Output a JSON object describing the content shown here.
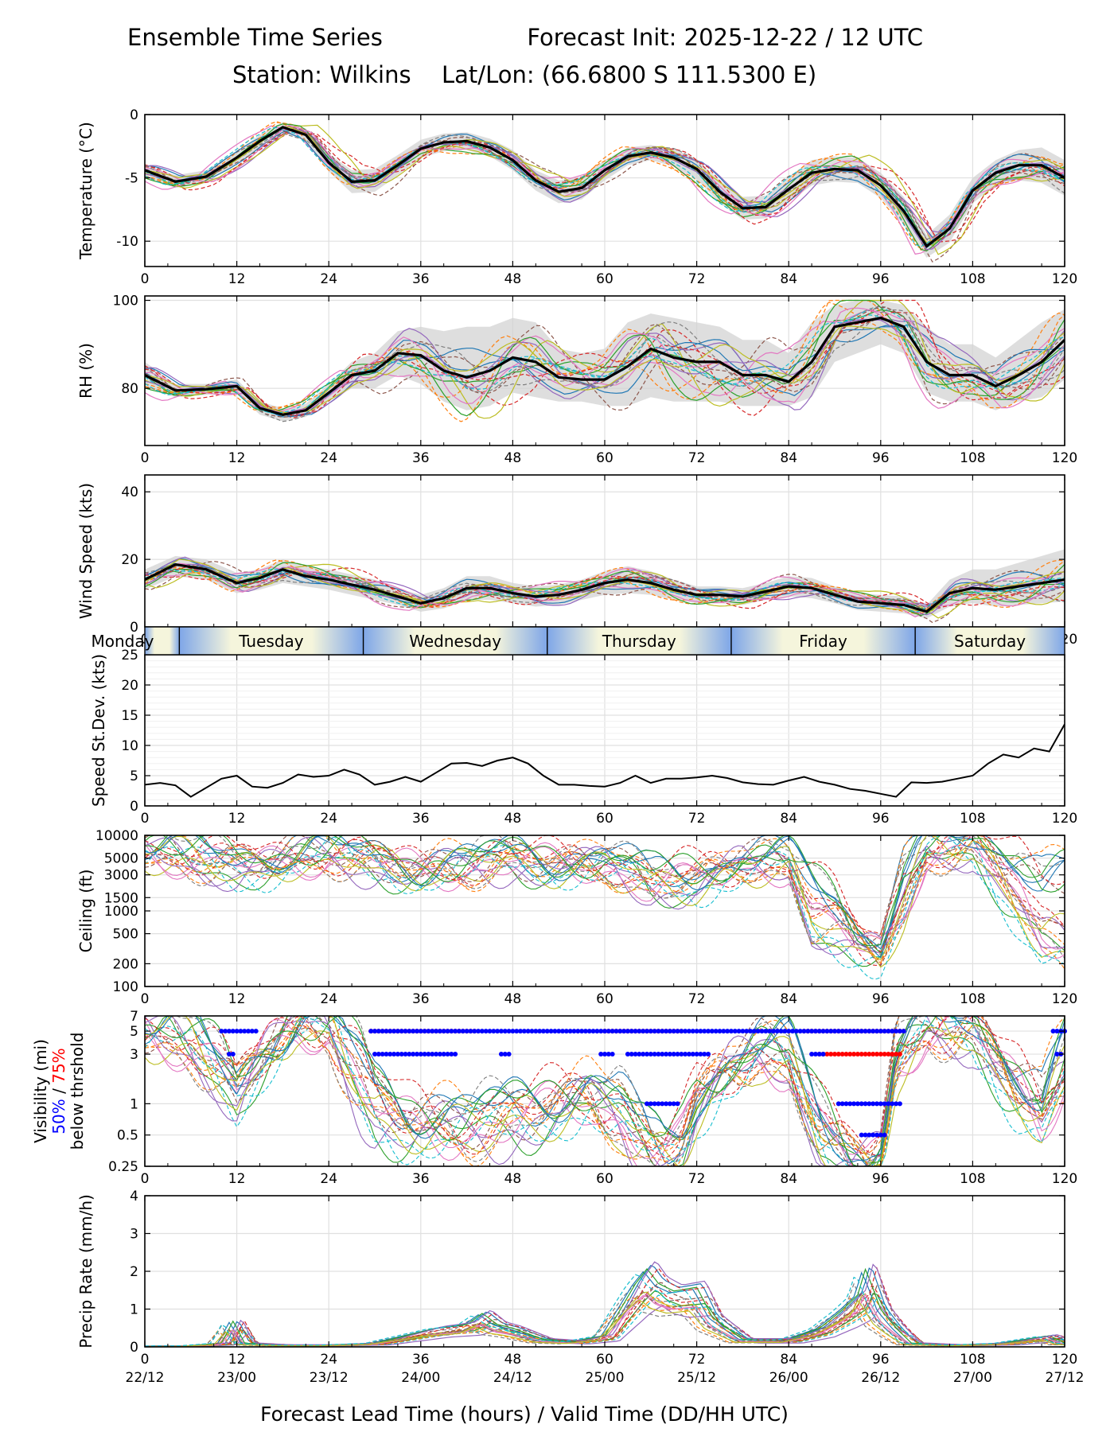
{
  "header": {
    "title_left": "Ensemble Time Series",
    "title_right": "Forecast Init: 2025-12-22 / 12 UTC",
    "station": "Station: Wilkins",
    "latlon": "Lat/Lon: (66.6800 S 111.5300 E)"
  },
  "footer": {
    "xlabel": "Forecast Lead Time (hours) / Valid Time (DD/HH UTC)"
  },
  "colors": {
    "ensemble": [
      "#1f77b4",
      "#ff7f0e",
      "#2ca02c",
      "#d62728",
      "#9467bd",
      "#8c564b",
      "#e377c2",
      "#7f7f7f",
      "#bcbd22",
      "#17becf"
    ],
    "mean": "#000000",
    "spread": "#d3d3d3",
    "vis50": "#0000ff",
    "vis75": "#ff0000",
    "day_band_a": "#7ea6e8",
    "day_band_b": "#f5f5dc"
  },
  "day_band": {
    "days": [
      {
        "label": "Monday",
        "start": 0,
        "end": 4.5
      },
      {
        "label": "Tuesday",
        "start": 4.5,
        "end": 28.5
      },
      {
        "label": "Wednesday",
        "start": 28.5,
        "end": 52.5
      },
      {
        "label": "Thursday",
        "start": 52.5,
        "end": 76.5
      },
      {
        "label": "Friday",
        "start": 76.5,
        "end": 100.5
      },
      {
        "label": "Saturday",
        "start": 100.5,
        "end": 120
      }
    ]
  },
  "chart_data": [
    {
      "id": "temperature",
      "type": "line",
      "ylabel": "Temperature (°C)",
      "xlim": [
        0,
        120
      ],
      "ylim": [
        -12,
        0
      ],
      "yticks": [
        0,
        -5,
        -10
      ],
      "xticks": [
        0,
        12,
        24,
        36,
        48,
        60,
        72,
        84,
        96,
        108,
        120
      ],
      "x": [
        0,
        4,
        8,
        12,
        15,
        18,
        21,
        24,
        27,
        30,
        33,
        36,
        39,
        42,
        45,
        48,
        51,
        54,
        57,
        60,
        63,
        66,
        69,
        72,
        75,
        78,
        81,
        84,
        87,
        90,
        93,
        96,
        99,
        102,
        105,
        108,
        111,
        114,
        117,
        120
      ],
      "mean": [
        -4.4,
        -5.3,
        -4.9,
        -3.4,
        -2.1,
        -1.0,
        -1.6,
        -3.8,
        -5.3,
        -5.2,
        -4.0,
        -2.7,
        -2.2,
        -2.1,
        -2.6,
        -3.6,
        -5.2,
        -6.1,
        -5.8,
        -4.4,
        -3.3,
        -3.0,
        -3.4,
        -4.3,
        -6.1,
        -7.4,
        -7.3,
        -5.9,
        -4.6,
        -4.3,
        -4.4,
        -5.6,
        -7.6,
        -10.4,
        -9.0,
        -6.0,
        -4.6,
        -4.0,
        -4.0,
        -5.0
      ],
      "spread_lo": [
        -4.9,
        -5.8,
        -5.4,
        -3.9,
        -2.6,
        -1.4,
        -2.1,
        -4.5,
        -6.2,
        -6.1,
        -4.8,
        -3.4,
        -2.9,
        -2.8,
        -3.3,
        -4.4,
        -6.0,
        -7.0,
        -6.7,
        -5.2,
        -4.0,
        -3.6,
        -4.1,
        -5.1,
        -7.0,
        -8.3,
        -8.2,
        -6.9,
        -5.6,
        -5.3,
        -5.4,
        -6.6,
        -8.7,
        -11.3,
        -10.1,
        -7.0,
        -5.6,
        -5.2,
        -5.4,
        -6.4
      ],
      "spread_hi": [
        -3.9,
        -4.8,
        -4.4,
        -2.9,
        -1.6,
        -0.6,
        -1.1,
        -3.1,
        -4.4,
        -4.3,
        -3.2,
        -2.0,
        -1.5,
        -1.4,
        -1.9,
        -2.8,
        -4.4,
        -5.2,
        -4.9,
        -3.6,
        -2.6,
        -2.4,
        -2.7,
        -3.5,
        -5.2,
        -6.5,
        -6.4,
        -4.9,
        -3.6,
        -3.3,
        -3.4,
        -4.6,
        -6.5,
        -9.5,
        -7.9,
        -5.0,
        -3.6,
        -2.8,
        -2.6,
        -3.6
      ]
    },
    {
      "id": "rh",
      "type": "line",
      "ylabel": "RH (%)",
      "xlim": [
        0,
        120
      ],
      "ylim": [
        67,
        101
      ],
      "yticks": [
        100,
        80
      ],
      "xticks": [
        0,
        12,
        24,
        36,
        48,
        60,
        72,
        84,
        96,
        108,
        120
      ],
      "x": [
        0,
        4,
        8,
        12,
        15,
        18,
        21,
        24,
        27,
        30,
        33,
        36,
        39,
        42,
        45,
        48,
        51,
        54,
        57,
        60,
        63,
        66,
        69,
        72,
        75,
        78,
        81,
        84,
        87,
        90,
        93,
        96,
        99,
        102,
        105,
        108,
        111,
        114,
        117,
        120
      ],
      "mean": [
        83,
        79.5,
        79.8,
        80.5,
        75.5,
        74,
        75,
        79,
        83,
        84,
        88,
        87.5,
        84,
        82.5,
        84,
        87,
        86,
        82.5,
        82,
        82,
        85,
        89,
        87,
        86,
        86,
        83,
        83,
        81.5,
        86,
        94,
        95,
        96,
        94,
        86,
        83,
        83,
        80.5,
        83,
        86,
        91
      ],
      "spread_lo": [
        80,
        78,
        78.5,
        79,
        74,
        72.5,
        73.5,
        77,
        80,
        80,
        83,
        81,
        77,
        75,
        76,
        79,
        78,
        77,
        77,
        76,
        76,
        78,
        77,
        77,
        77,
        76,
        76,
        76,
        78,
        86,
        88,
        90,
        88,
        79,
        77,
        77,
        75,
        77,
        78,
        82
      ],
      "spread_hi": [
        86,
        81,
        81,
        82,
        77,
        75.5,
        76.5,
        81,
        86,
        88,
        93,
        94,
        93,
        94,
        94,
        96,
        95,
        89,
        88,
        89,
        95,
        97,
        96,
        95,
        94,
        91,
        91,
        88,
        95,
        99,
        100,
        100,
        99,
        94,
        90,
        90,
        87,
        91,
        95,
        98
      ]
    },
    {
      "id": "wind_speed",
      "type": "line",
      "ylabel": "Wind Speed (kts)",
      "xlim": [
        0,
        120
      ],
      "ylim": [
        0,
        45
      ],
      "yticks": [
        0,
        20,
        40
      ],
      "xticks": [
        0,
        12,
        24,
        36,
        48,
        60,
        72,
        84,
        96,
        108,
        120
      ],
      "x": [
        0,
        4,
        8,
        12,
        15,
        18,
        21,
        24,
        27,
        30,
        33,
        36,
        39,
        42,
        45,
        48,
        51,
        54,
        57,
        60,
        63,
        66,
        69,
        72,
        75,
        78,
        81,
        84,
        87,
        90,
        93,
        96,
        99,
        102,
        105,
        108,
        111,
        114,
        117,
        120
      ],
      "mean": [
        14,
        18.5,
        17,
        13,
        14.5,
        17,
        15,
        14,
        12.5,
        11,
        9,
        7,
        8.5,
        11.5,
        11.5,
        10,
        9,
        9.5,
        11,
        13,
        14,
        13,
        11,
        9.5,
        9.5,
        9,
        10.5,
        12,
        11.5,
        9.5,
        7.5,
        7,
        6.5,
        4.5,
        10,
        11.5,
        11,
        12,
        13,
        14
      ],
      "spread_lo": [
        11,
        15,
        14,
        10,
        11,
        13,
        12,
        11,
        9.5,
        8,
        6.5,
        4.5,
        5.5,
        8,
        8,
        7,
        6,
        6.5,
        8,
        9.5,
        10,
        9.5,
        8,
        7,
        7,
        6.5,
        8,
        9,
        8.5,
        7,
        5,
        4.5,
        4,
        2.5,
        6,
        7,
        6,
        6.5,
        7,
        7.5
      ],
      "spread_hi": [
        17,
        21,
        20,
        16,
        17,
        20,
        18,
        17,
        15.5,
        14,
        11.5,
        9.5,
        11.5,
        15,
        15,
        13,
        12,
        12.5,
        14,
        16.5,
        18,
        16.5,
        14,
        12,
        12,
        11.5,
        13,
        15,
        14.5,
        12,
        10,
        9.5,
        9,
        6.5,
        14,
        17,
        17,
        19,
        21,
        23
      ]
    },
    {
      "id": "speed_stdev",
      "type": "line",
      "ylabel": "Speed St.Dev. (kts)",
      "xlim": [
        0,
        120
      ],
      "ylim": [
        0,
        25
      ],
      "yticks": [
        0,
        5,
        10,
        15,
        20,
        25
      ],
      "xticks": [
        0,
        12,
        24,
        36,
        48,
        60,
        72,
        84,
        96,
        108,
        120
      ],
      "x": [
        0,
        2,
        4,
        6,
        8,
        10,
        12,
        14,
        16,
        18,
        20,
        22,
        24,
        26,
        28,
        30,
        32,
        34,
        36,
        38,
        40,
        42,
        44,
        46,
        48,
        50,
        52,
        54,
        56,
        58,
        60,
        62,
        64,
        66,
        68,
        70,
        72,
        74,
        76,
        78,
        80,
        82,
        84,
        86,
        88,
        90,
        92,
        94,
        96,
        98,
        100,
        102,
        104,
        106,
        108,
        110,
        112,
        114,
        116,
        118,
        120
      ],
      "values": [
        3.5,
        3.8,
        3.4,
        1.5,
        3.0,
        4.5,
        5.0,
        3.2,
        3.0,
        3.8,
        5.2,
        4.8,
        5.0,
        6.0,
        5.2,
        3.5,
        4.0,
        4.8,
        4.0,
        5.5,
        7.0,
        7.1,
        6.6,
        7.5,
        8.0,
        7.0,
        5.0,
        3.5,
        3.5,
        3.3,
        3.2,
        3.8,
        5.0,
        3.8,
        4.5,
        4.5,
        4.7,
        5.0,
        4.6,
        3.9,
        3.6,
        3.5,
        4.2,
        4.8,
        4.0,
        3.5,
        2.8,
        2.5,
        2.0,
        1.5,
        3.9,
        3.8,
        4.0,
        4.5,
        5.0,
        7.0,
        8.5,
        8.0,
        9.5,
        9.0,
        13.5
      ]
    },
    {
      "id": "ceiling",
      "type": "line",
      "ylabel": "Ceiling (ft)",
      "yscale": "log",
      "xlim": [
        0,
        120
      ],
      "ylim": [
        100,
        10000
      ],
      "ytick_labels": [
        "10000",
        "5000",
        "3000",
        "1500",
        "1000",
        "500",
        "200",
        "100"
      ],
      "yticks": [
        10000,
        5000,
        3000,
        1500,
        1000,
        500,
        200,
        100
      ],
      "xticks": [
        0,
        12,
        24,
        36,
        48,
        60,
        72,
        84,
        96,
        108,
        120
      ],
      "x": [
        0,
        6,
        12,
        18,
        24,
        30,
        36,
        42,
        48,
        54,
        60,
        66,
        72,
        78,
        84,
        87,
        90,
        93,
        96,
        99,
        102,
        108,
        114,
        117,
        120
      ],
      "median": [
        9000,
        7500,
        6000,
        7000,
        7500,
        6000,
        4500,
        5500,
        6000,
        5500,
        6000,
        3500,
        4000,
        6000,
        5500,
        3500,
        2000,
        700,
        500,
        5000,
        9000,
        9000,
        8500,
        5000,
        6000
      ],
      "low": [
        6000,
        4000,
        3000,
        4000,
        5000,
        3500,
        3000,
        3500,
        4000,
        3500,
        4000,
        1800,
        2000,
        4000,
        3500,
        500,
        400,
        300,
        250,
        800,
        5000,
        6000,
        900,
        300,
        250
      ]
    },
    {
      "id": "visibility",
      "type": "line",
      "ylabel": "Visibility (mi)",
      "ylabel_50": "50%",
      "ylabel_sep": " / ",
      "ylabel_75": "75%",
      "ylabel2": "below thrshold",
      "yscale": "log",
      "xlim": [
        0,
        120
      ],
      "ylim": [
        0.25,
        7
      ],
      "ytick_labels": [
        "7",
        "5",
        "3",
        "1",
        "0.5",
        "0.25"
      ],
      "yticks": [
        7,
        5,
        3,
        1,
        0.5,
        0.25
      ],
      "xticks": [
        0,
        12,
        24,
        36,
        48,
        60,
        72,
        84,
        96,
        108,
        120
      ],
      "x": [
        0,
        6,
        10,
        12,
        16,
        20,
        24,
        28,
        30,
        34,
        38,
        42,
        46,
        50,
        54,
        58,
        62,
        64,
        66,
        68,
        70,
        72,
        76,
        80,
        84,
        88,
        90,
        92,
        94,
        96,
        98,
        102,
        108,
        114,
        117,
        120
      ],
      "median": [
        7,
        6,
        3,
        1.8,
        5,
        7,
        7,
        4,
        2,
        1.2,
        1,
        0.9,
        1,
        1.2,
        1.5,
        2,
        1.5,
        0.8,
        0.5,
        0.4,
        0.6,
        1.5,
        3,
        4,
        4,
        1,
        0.6,
        0.4,
        0.35,
        0.5,
        5,
        7,
        6,
        3,
        1.5,
        5
      ],
      "low": [
        5,
        3,
        1.5,
        1,
        3,
        6,
        5,
        1,
        0.6,
        0.5,
        0.5,
        0.5,
        0.5,
        0.6,
        0.8,
        1,
        0.6,
        0.35,
        0.3,
        0.3,
        0.35,
        0.8,
        2,
        3,
        2,
        0.4,
        0.3,
        0.25,
        0.25,
        0.3,
        2,
        5,
        4,
        1,
        0.6,
        1.5
      ],
      "threshold_50": [
        {
          "y": 5,
          "x0": 10,
          "x1": 14.5
        },
        {
          "y": 3,
          "x0": 11,
          "x1": 11.6
        },
        {
          "y": 5,
          "x0": 29.5,
          "x1": 99
        },
        {
          "y": 3,
          "x0": 30,
          "x1": 40.5
        },
        {
          "y": 3,
          "x0": 46.5,
          "x1": 47.5
        },
        {
          "y": 3,
          "x0": 59.5,
          "x1": 61
        },
        {
          "y": 3,
          "x0": 63,
          "x1": 73.5
        },
        {
          "y": 1,
          "x0": 65.5,
          "x1": 69.5
        },
        {
          "y": 3,
          "x0": 87,
          "x1": 88.5
        },
        {
          "y": 1,
          "x0": 90.5,
          "x1": 98.5
        },
        {
          "y": 0.5,
          "x0": 93.5,
          "x1": 96.5
        },
        {
          "y": 5,
          "x0": 118.5,
          "x1": 120
        },
        {
          "y": 3,
          "x0": 119,
          "x1": 119.5
        }
      ],
      "threshold_75": [
        {
          "y": 5,
          "x0": 29.5,
          "x1": 43
        },
        {
          "y": 5,
          "x0": 60,
          "x1": 70
        },
        {
          "y": 5,
          "x0": 86,
          "x1": 99
        },
        {
          "y": 3,
          "x0": 88,
          "x1": 98.5
        }
      ]
    },
    {
      "id": "precip_rate",
      "type": "line",
      "ylabel": "Precip Rate (mm/h)",
      "xlim": [
        0,
        120
      ],
      "ylim": [
        0,
        4
      ],
      "yticks": [
        0,
        1,
        2,
        3,
        4
      ],
      "xticks": [
        0,
        12,
        24,
        36,
        48,
        60,
        72,
        84,
        96,
        108,
        120
      ],
      "valid_time_labels": [
        "22/12",
        "23/00",
        "23/12",
        "24/00",
        "24/12",
        "25/00",
        "25/12",
        "26/00",
        "26/12",
        "27/00",
        "27/12"
      ],
      "x": [
        0,
        6,
        10,
        11.5,
        13,
        18,
        24,
        30,
        34,
        38,
        42,
        44,
        46,
        48,
        52,
        56,
        60,
        62,
        64,
        65.5,
        67,
        69,
        72,
        74,
        78,
        84,
        88,
        91,
        93,
        94,
        96,
        98,
        100,
        106,
        112,
        118,
        120
      ],
      "values": [
        0.02,
        0.03,
        0.1,
        0.7,
        0.1,
        0.05,
        0.05,
        0.1,
        0.3,
        0.5,
        0.6,
        0.9,
        0.6,
        0.5,
        0.2,
        0.15,
        0.3,
        1.0,
        1.7,
        2.1,
        1.7,
        1.5,
        1.6,
        0.8,
        0.2,
        0.2,
        0.5,
        1.0,
        1.4,
        2.1,
        1.0,
        0.5,
        0.1,
        0.05,
        0.1,
        0.3,
        0.1
      ]
    }
  ]
}
